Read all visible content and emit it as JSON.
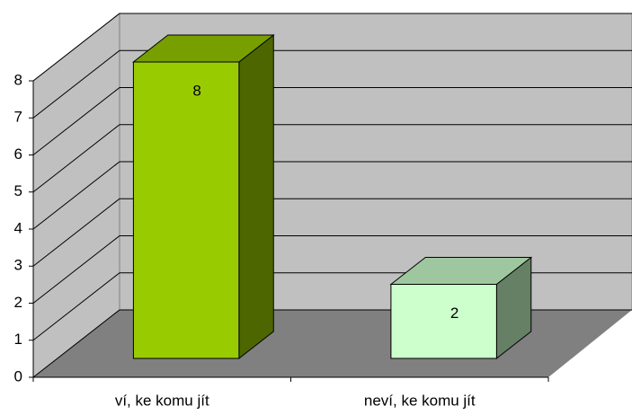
{
  "chart_data": {
    "type": "bar3d",
    "categories": [
      "ví, ke komu jít",
      "neví, ke komu jít"
    ],
    "values": [
      8,
      2
    ],
    "colors": [
      "#99cc00",
      "#ccffcc"
    ],
    "ylim": [
      0,
      8
    ],
    "yticks": [
      0,
      1,
      2,
      3,
      4,
      5,
      6,
      7,
      8
    ],
    "grid": true
  }
}
